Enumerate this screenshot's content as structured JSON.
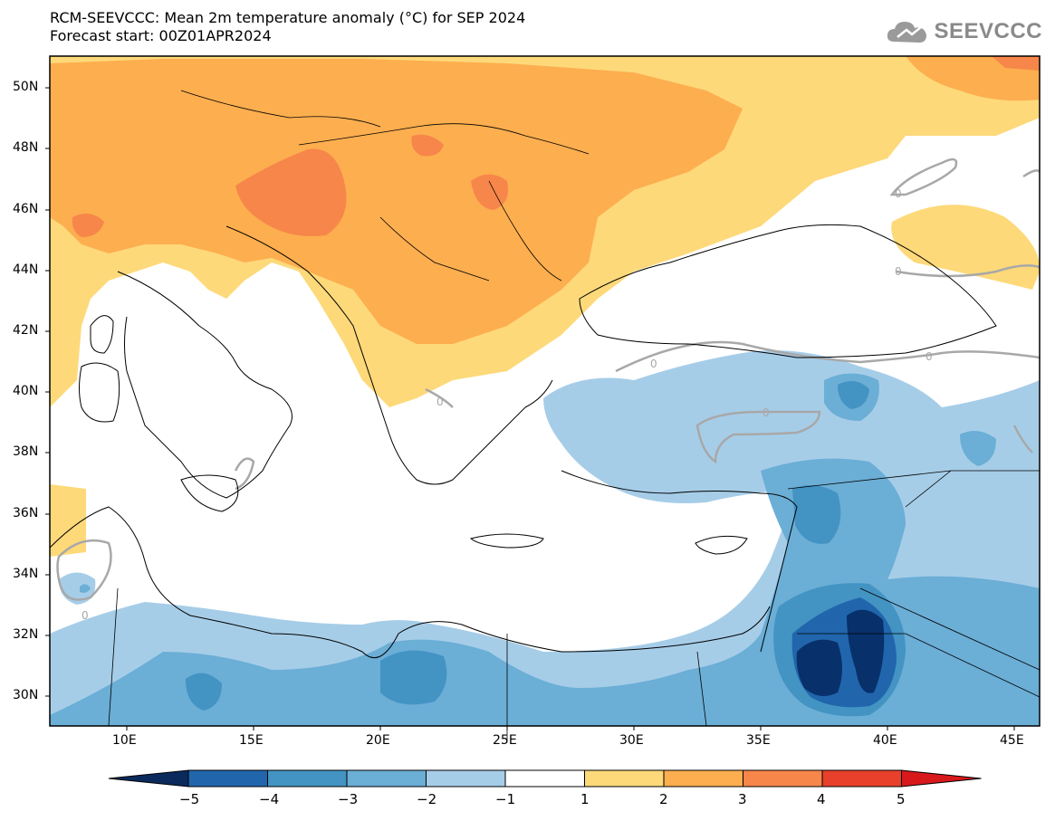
{
  "header": {
    "title_line1": "RCM-SEEVCCC: Mean 2m temperature anomaly (°C) for SEP 2024",
    "title_line2": "Forecast start: 00Z01APR2024",
    "logo_text": "SEEVCCC"
  },
  "map": {
    "lat_labels": [
      "50N",
      "48N",
      "46N",
      "44N",
      "42N",
      "40N",
      "38N",
      "36N",
      "34N",
      "32N",
      "30N"
    ],
    "lon_labels": [
      "10E",
      "15E",
      "20E",
      "25E",
      "30E",
      "35E",
      "40E",
      "45E"
    ],
    "contour_label": "0"
  },
  "colorbar": {
    "labels": [
      "−5",
      "−4",
      "−3",
      "−2",
      "−1",
      "1",
      "2",
      "3",
      "4",
      "5"
    ],
    "colors": [
      "#08306b",
      "#2166ac",
      "#4393c3",
      "#6baed6",
      "#a6cde8",
      "#ffffff",
      "#fdd97a",
      "#fdae4f",
      "#f7864a",
      "#e8402b",
      "#d62728"
    ],
    "low_end_color": "#0a2a5c",
    "high_end_color": "#d7191c"
  }
}
